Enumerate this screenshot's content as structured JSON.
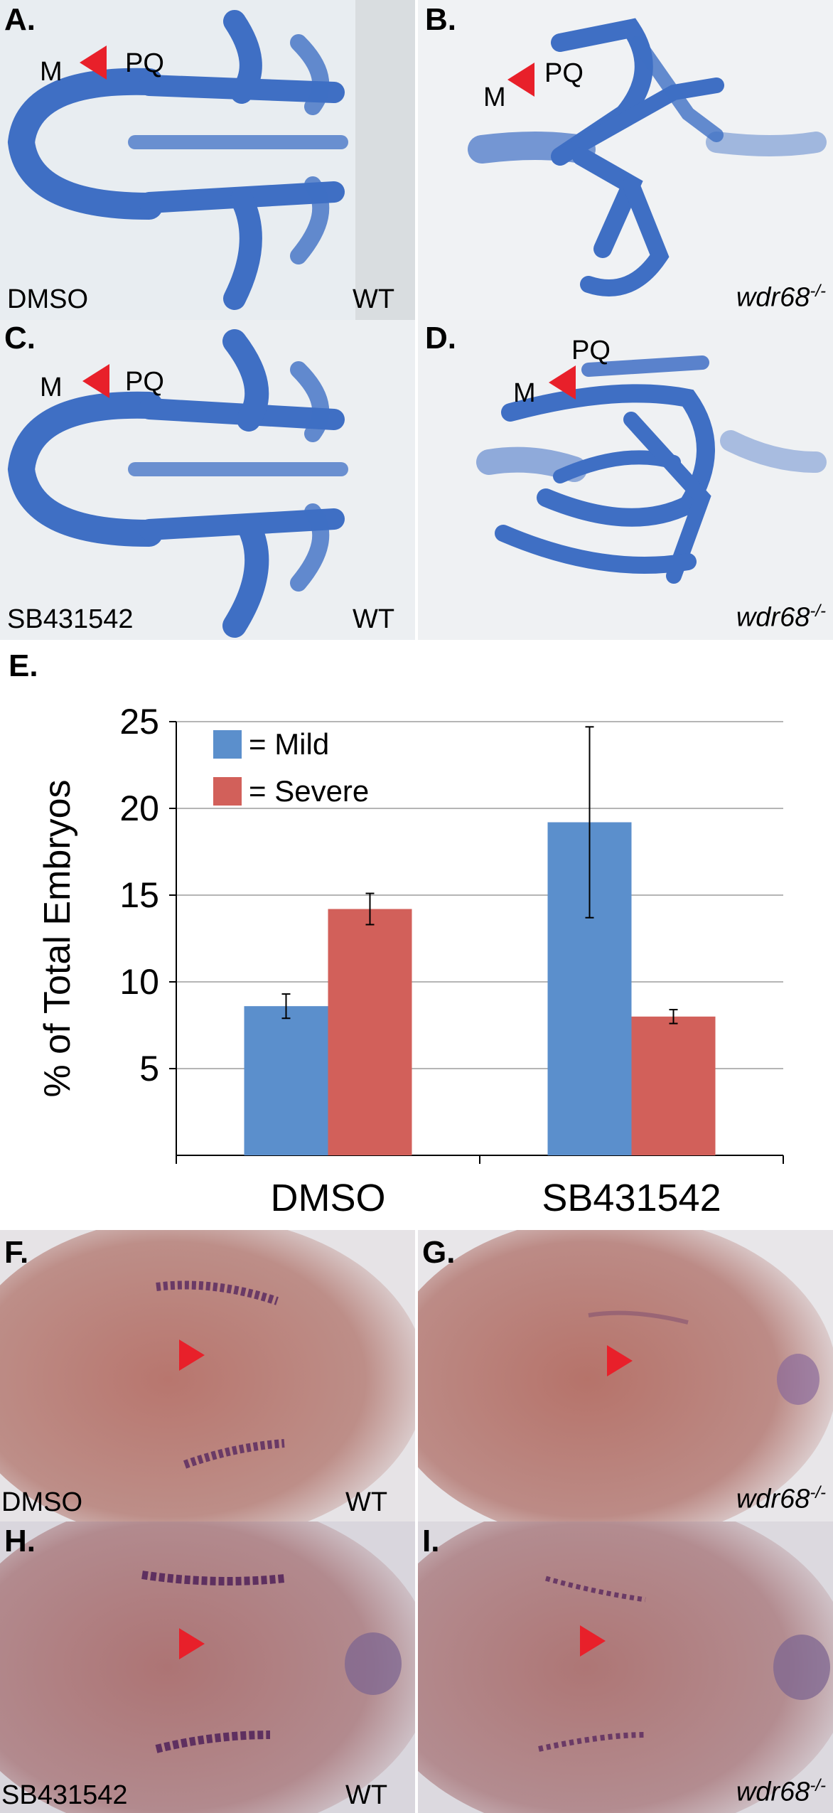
{
  "panels": {
    "A": {
      "letter": "A.",
      "treatment": "DMSO",
      "genotype": "WT",
      "m": "M",
      "pq": "PQ"
    },
    "B": {
      "letter": "B.",
      "treatment": "",
      "genotype": "wdr68",
      "genotype_sup": "-/-",
      "m": "M",
      "pq": "PQ"
    },
    "C": {
      "letter": "C.",
      "treatment": "SB431542",
      "genotype": "WT",
      "m": "M",
      "pq": "PQ"
    },
    "D": {
      "letter": "D.",
      "treatment": "",
      "genotype": "wdr68",
      "genotype_sup": "-/-",
      "m": "M",
      "pq": "PQ"
    },
    "E": {
      "letter": "E."
    },
    "F": {
      "letter": "F.",
      "treatment": "DMSO",
      "genotype": "WT"
    },
    "G": {
      "letter": "G.",
      "treatment": "",
      "genotype": "wdr68",
      "genotype_sup": "-/-"
    },
    "H": {
      "letter": "H.",
      "treatment": "SB431542",
      "genotype": "WT"
    },
    "I": {
      "letter": "I.",
      "treatment": "",
      "genotype": "wdr68",
      "genotype_sup": "-/-"
    }
  },
  "colors": {
    "cartilage_blue": "#3f6fc4",
    "panel_bg_light": "#e9eef2",
    "ish_bg": "#b6857f",
    "arrow_red": "#e8202a",
    "mild": "#5b8fcc",
    "severe": "#d2605a"
  },
  "chart_data": {
    "type": "bar",
    "title": "",
    "xlabel": "",
    "ylabel": "% of Total Embryos",
    "ylim": [
      0,
      25
    ],
    "yticks": [
      5,
      10,
      15,
      20,
      25
    ],
    "grid": true,
    "legend_position": "top-left",
    "categories": [
      "DMSO",
      "SB431542"
    ],
    "series": [
      {
        "name": "= Mild",
        "color": "#5b8fcc",
        "values": [
          8.6,
          19.2
        ],
        "errors": [
          0.7,
          5.5
        ]
      },
      {
        "name": "= Severe",
        "color": "#d2605a",
        "values": [
          14.2,
          8.0
        ],
        "errors": [
          0.9,
          0.4
        ]
      }
    ]
  }
}
